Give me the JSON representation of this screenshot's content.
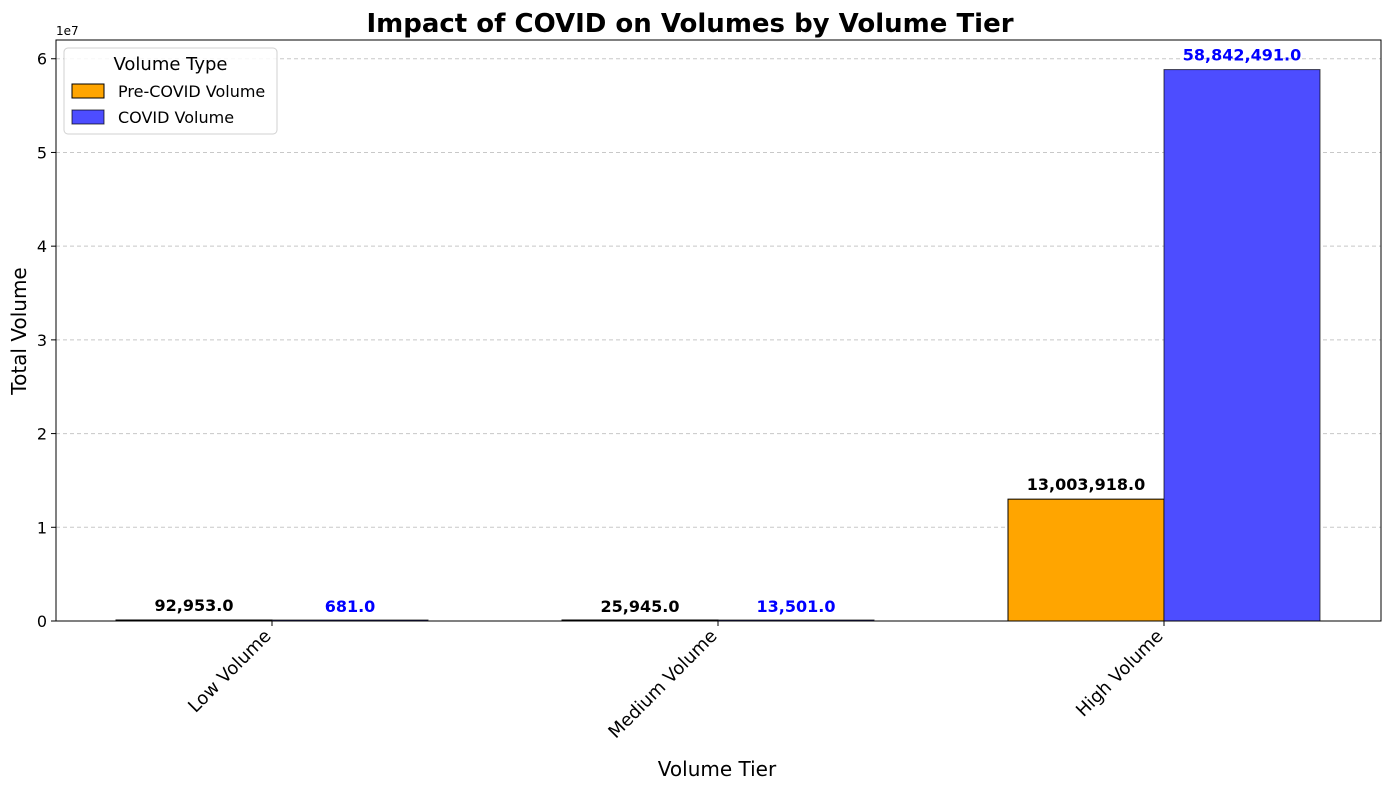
{
  "chart_data": {
    "type": "bar",
    "title": "Impact of COVID on Volumes by Volume Tier",
    "xlabel": "Volume Tier",
    "ylabel": "Total Volume",
    "y_exponent_label": "1e7",
    "ylim": [
      0,
      62000000
    ],
    "y_ticks": [
      0,
      10000000,
      20000000,
      30000000,
      40000000,
      50000000,
      60000000
    ],
    "y_tick_labels": [
      "0",
      "1",
      "2",
      "3",
      "4",
      "5",
      "6"
    ],
    "grid": "y-dashed",
    "categories": [
      "Low Volume",
      "Medium Volume",
      "High Volume"
    ],
    "legend": {
      "title": "Volume Type",
      "placement": "top-left"
    },
    "series": [
      {
        "name": "Pre-COVID Volume",
        "color": "#FFA500",
        "label_color": "#000000",
        "values": [
          92953,
          25945,
          13003918
        ],
        "labels": [
          "92,953.0",
          "25,945.0",
          "13,003,918.0"
        ]
      },
      {
        "name": "COVID Volume",
        "color": "#4D4DFF",
        "label_color": "#0000FF",
        "values": [
          681,
          13501,
          58842491
        ],
        "labels": [
          "681.0",
          "13,501.0",
          "58,842,491.0"
        ]
      }
    ]
  }
}
